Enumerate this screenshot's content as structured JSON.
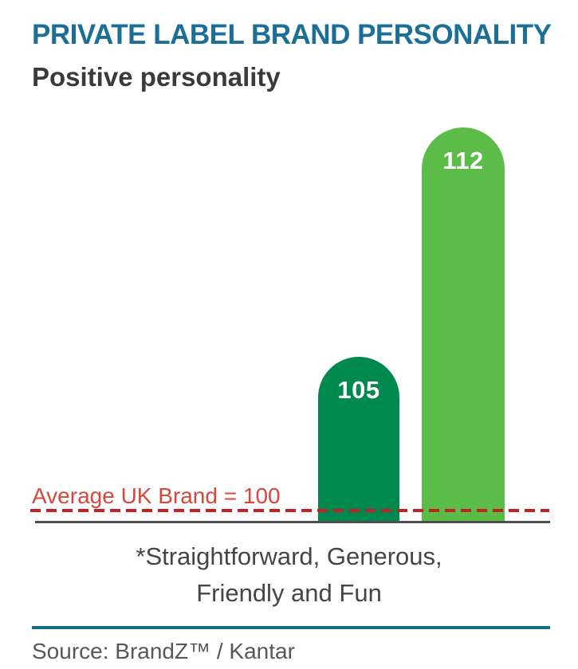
{
  "chart_data": {
    "type": "bar",
    "title": "PRIVATE LABEL BRAND PERSONALITY",
    "subtitle": "Positive personality",
    "values": [
      105,
      112
    ],
    "value_labels": [
      "105",
      "112"
    ],
    "bar_colors": [
      "#00894F",
      "#5BBC47"
    ],
    "baseline": {
      "value": 100,
      "label": "Average UK Brand = 100",
      "line_style": "dashed",
      "line_color": "#C42127",
      "label_color": "#D8473B"
    },
    "axis_line_color": "#4D4D4D",
    "ylim": [
      99.6,
      113
    ],
    "grid": false,
    "legend": "none",
    "footnote_lines": [
      "*Straightforward, Generous,",
      "Friendly and Fun"
    ],
    "source": "Source: BrandZ™ / Kantar"
  },
  "colors": {
    "title": "#1B6E96",
    "subtitle": "#3A3A39",
    "footnote": "#454544",
    "source_divider": "#136F83",
    "source_text": "#575756",
    "bar_value_text": "#FFFFFF",
    "background": "#FFFFFF"
  }
}
